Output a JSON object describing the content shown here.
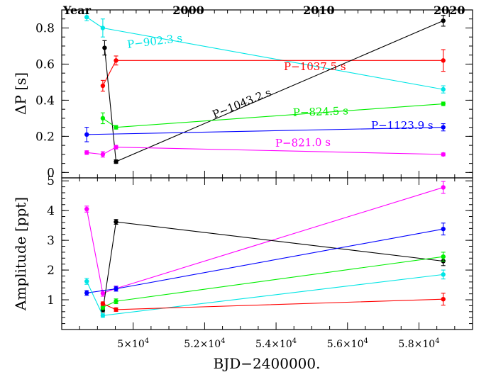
{
  "chart_data": [
    {
      "type": "line",
      "ylabel": "ΔP [s]",
      "ylim": [
        -0.03,
        0.9
      ],
      "yticks": [
        "0",
        "0.2",
        "0.4",
        "0.6",
        "0.8"
      ],
      "top_axis": {
        "label": "Year",
        "ticks": [
          "2000",
          "2010",
          "2020"
        ],
        "tick_years": [
          2000,
          2010,
          2020
        ]
      },
      "series": [
        {
          "name": "P−902.3 s",
          "color": "#00e5e5",
          "label_angle": -7,
          "x": [
            48700,
            49150,
            58680
          ],
          "y": [
            0.86,
            0.8,
            0.46
          ],
          "err": [
            0.02,
            0.05,
            0.02
          ]
        },
        {
          "name": "P−1037.5 s",
          "color": "#ff0000",
          "label_angle": 0,
          "x": [
            49150,
            49520,
            58680
          ],
          "y": [
            0.48,
            0.62,
            0.62
          ],
          "err": [
            0.03,
            0.025,
            0.06
          ]
        },
        {
          "name": "P−1043.2 s",
          "color": "#000000",
          "label_angle": -22,
          "x": [
            49200,
            49520,
            58680
          ],
          "y": [
            0.69,
            0.06,
            0.84
          ],
          "err": [
            0.04,
            0.01,
            0.03
          ]
        },
        {
          "name": "P−824.5 s",
          "color": "#00ee00",
          "label_angle": -2,
          "x": [
            49150,
            49520,
            58680
          ],
          "y": [
            0.3,
            0.25,
            0.38
          ],
          "err": [
            0.03,
            0.01,
            0.01
          ]
        },
        {
          "name": "P−1123.9 s",
          "color": "#0000ff",
          "label_angle": 0,
          "x": [
            48700,
            58680
          ],
          "y": [
            0.21,
            0.25
          ],
          "err": [
            0.04,
            0.02
          ]
        },
        {
          "name": "P−821.0 s",
          "color": "#ff00ff",
          "label_angle": -1,
          "x": [
            48700,
            49150,
            49520,
            58680
          ],
          "y": [
            0.11,
            0.1,
            0.14,
            0.1
          ],
          "err": [
            0.01,
            0.015,
            0.01,
            0.008
          ]
        }
      ]
    },
    {
      "type": "line",
      "ylabel": "Amplitude [ppt]",
      "xlabel": "BJD−2400000.",
      "ylim": [
        0,
        5.1
      ],
      "yticks": [
        "1",
        "2",
        "3",
        "4",
        "5"
      ],
      "xlim": [
        48000,
        59500
      ],
      "xticks": [
        {
          "value": 50000,
          "mant": "5",
          "exp": "4"
        },
        {
          "value": 52000,
          "mant": "5.2",
          "exp": "4"
        },
        {
          "value": 54000,
          "mant": "5.4",
          "exp": "4"
        },
        {
          "value": 56000,
          "mant": "5.6",
          "exp": "4"
        },
        {
          "value": 58000,
          "mant": "5.8",
          "exp": "4"
        }
      ],
      "series": [
        {
          "name": "P−821.0 s",
          "color": "#ff00ff",
          "x": [
            48700,
            49150,
            49520,
            58680
          ],
          "y": [
            4.05,
            1.22,
            1.38,
            4.78
          ],
          "err": [
            0.1,
            0.1,
            0.08,
            0.2
          ]
        },
        {
          "name": "P−1043.2 s",
          "color": "#000000",
          "x": [
            49150,
            49520,
            58680
          ],
          "y": [
            0.65,
            3.62,
            2.3
          ],
          "err": [
            0.06,
            0.08,
            0.15
          ]
        },
        {
          "name": "P−1123.9 s",
          "color": "#0000ff",
          "x": [
            48700,
            49520,
            58680
          ],
          "y": [
            1.23,
            1.37,
            3.38
          ],
          "err": [
            0.08,
            0.08,
            0.2
          ]
        },
        {
          "name": "P−824.5 s",
          "color": "#00ee00",
          "x": [
            49150,
            49520,
            58680
          ],
          "y": [
            0.75,
            0.95,
            2.45
          ],
          "err": [
            0.08,
            0.08,
            0.15
          ]
        },
        {
          "name": "P−902.3 s",
          "color": "#00e5e5",
          "x": [
            48700,
            49150,
            58680
          ],
          "y": [
            1.62,
            0.47,
            1.85
          ],
          "err": [
            0.1,
            0.06,
            0.15
          ]
        },
        {
          "name": "P−1037.5 s",
          "color": "#ff0000",
          "x": [
            49150,
            49520,
            58680
          ],
          "y": [
            0.87,
            0.67,
            1.02
          ],
          "err": [
            0.06,
            0.06,
            0.2
          ]
        }
      ]
    }
  ]
}
